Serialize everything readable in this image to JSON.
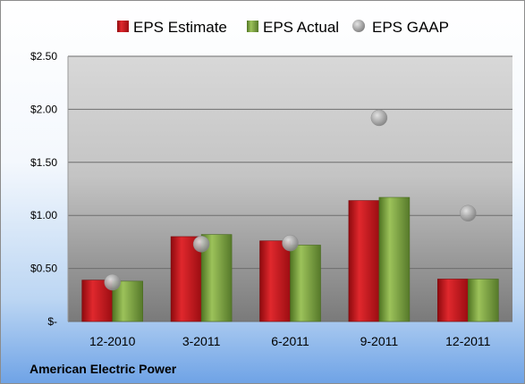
{
  "chart_data": {
    "type": "bar",
    "categories": [
      "12-2010",
      "3-2011",
      "6-2011",
      "9-2011",
      "12-2011"
    ],
    "series": [
      {
        "name": "EPS Estimate",
        "kind": "bar",
        "color": "#c0161b",
        "values": [
          0.39,
          0.8,
          0.76,
          1.14,
          0.4
        ]
      },
      {
        "name": "EPS Actual",
        "kind": "bar",
        "color": "#7aa23a",
        "values": [
          0.38,
          0.82,
          0.72,
          1.17,
          0.4
        ]
      },
      {
        "name": "EPS GAAP",
        "kind": "marker",
        "color": "#a8a8a8",
        "values": [
          0.37,
          0.73,
          0.74,
          1.92,
          1.02
        ]
      }
    ],
    "y_ticks": [
      {
        "value": 0,
        "label": "$-"
      },
      {
        "value": 0.5,
        "label": "$0.50"
      },
      {
        "value": 1.0,
        "label": "$1.00"
      },
      {
        "value": 1.5,
        "label": "$1.50"
      },
      {
        "value": 2.0,
        "label": "$2.00"
      },
      {
        "value": 2.5,
        "label": "$2.50"
      }
    ],
    "ylim": [
      0,
      2.5
    ],
    "grid": true,
    "legend_position": "top"
  },
  "company_name": "American Electric Power"
}
